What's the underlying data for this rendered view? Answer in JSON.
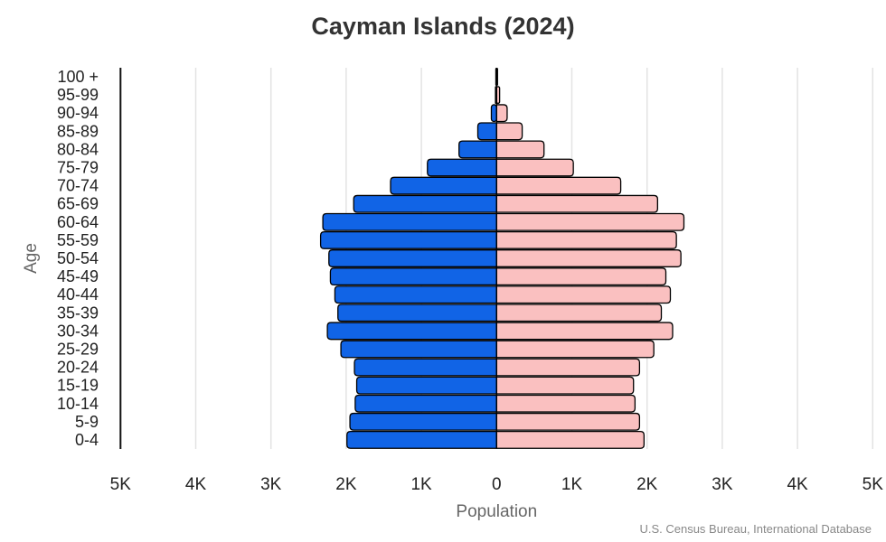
{
  "chart_data": {
    "type": "bar",
    "orientation": "horizontal-pyramid",
    "title": "Cayman Islands (2024)",
    "xlabel": "Population",
    "ylabel": "Age",
    "source": "U.S. Census Bureau, International Database",
    "xlim": [
      -5000,
      5000
    ],
    "x_tick_labels": [
      "5K",
      "4K",
      "3K",
      "2K",
      "1K",
      "0",
      "1K",
      "2K",
      "3K",
      "4K",
      "5K"
    ],
    "x_tick_values": [
      -5000,
      -4000,
      -3000,
      -2000,
      -1000,
      0,
      1000,
      2000,
      3000,
      4000,
      5000
    ],
    "grid": true,
    "categories": [
      "100 +",
      "95-99",
      "90-94",
      "85-89",
      "80-84",
      "75-79",
      "70-74",
      "65-69",
      "60-64",
      "55-59",
      "50-54",
      "45-49",
      "40-44",
      "35-39",
      "30-34",
      "25-29",
      "20-24",
      "15-19",
      "10-14",
      "5-9",
      "0-4"
    ],
    "series": [
      {
        "side": "left",
        "color": "#1164E6",
        "values": [
          10,
          15,
          70,
          250,
          500,
          920,
          1410,
          1900,
          2310,
          2340,
          2230,
          2210,
          2150,
          2110,
          2250,
          2070,
          1890,
          1860,
          1880,
          1950,
          1990
        ]
      },
      {
        "side": "right",
        "color": "#FAC0C0",
        "values": [
          10,
          40,
          140,
          340,
          630,
          1020,
          1650,
          2140,
          2490,
          2390,
          2450,
          2250,
          2310,
          2190,
          2340,
          2090,
          1900,
          1820,
          1840,
          1900,
          1960
        ]
      }
    ]
  }
}
